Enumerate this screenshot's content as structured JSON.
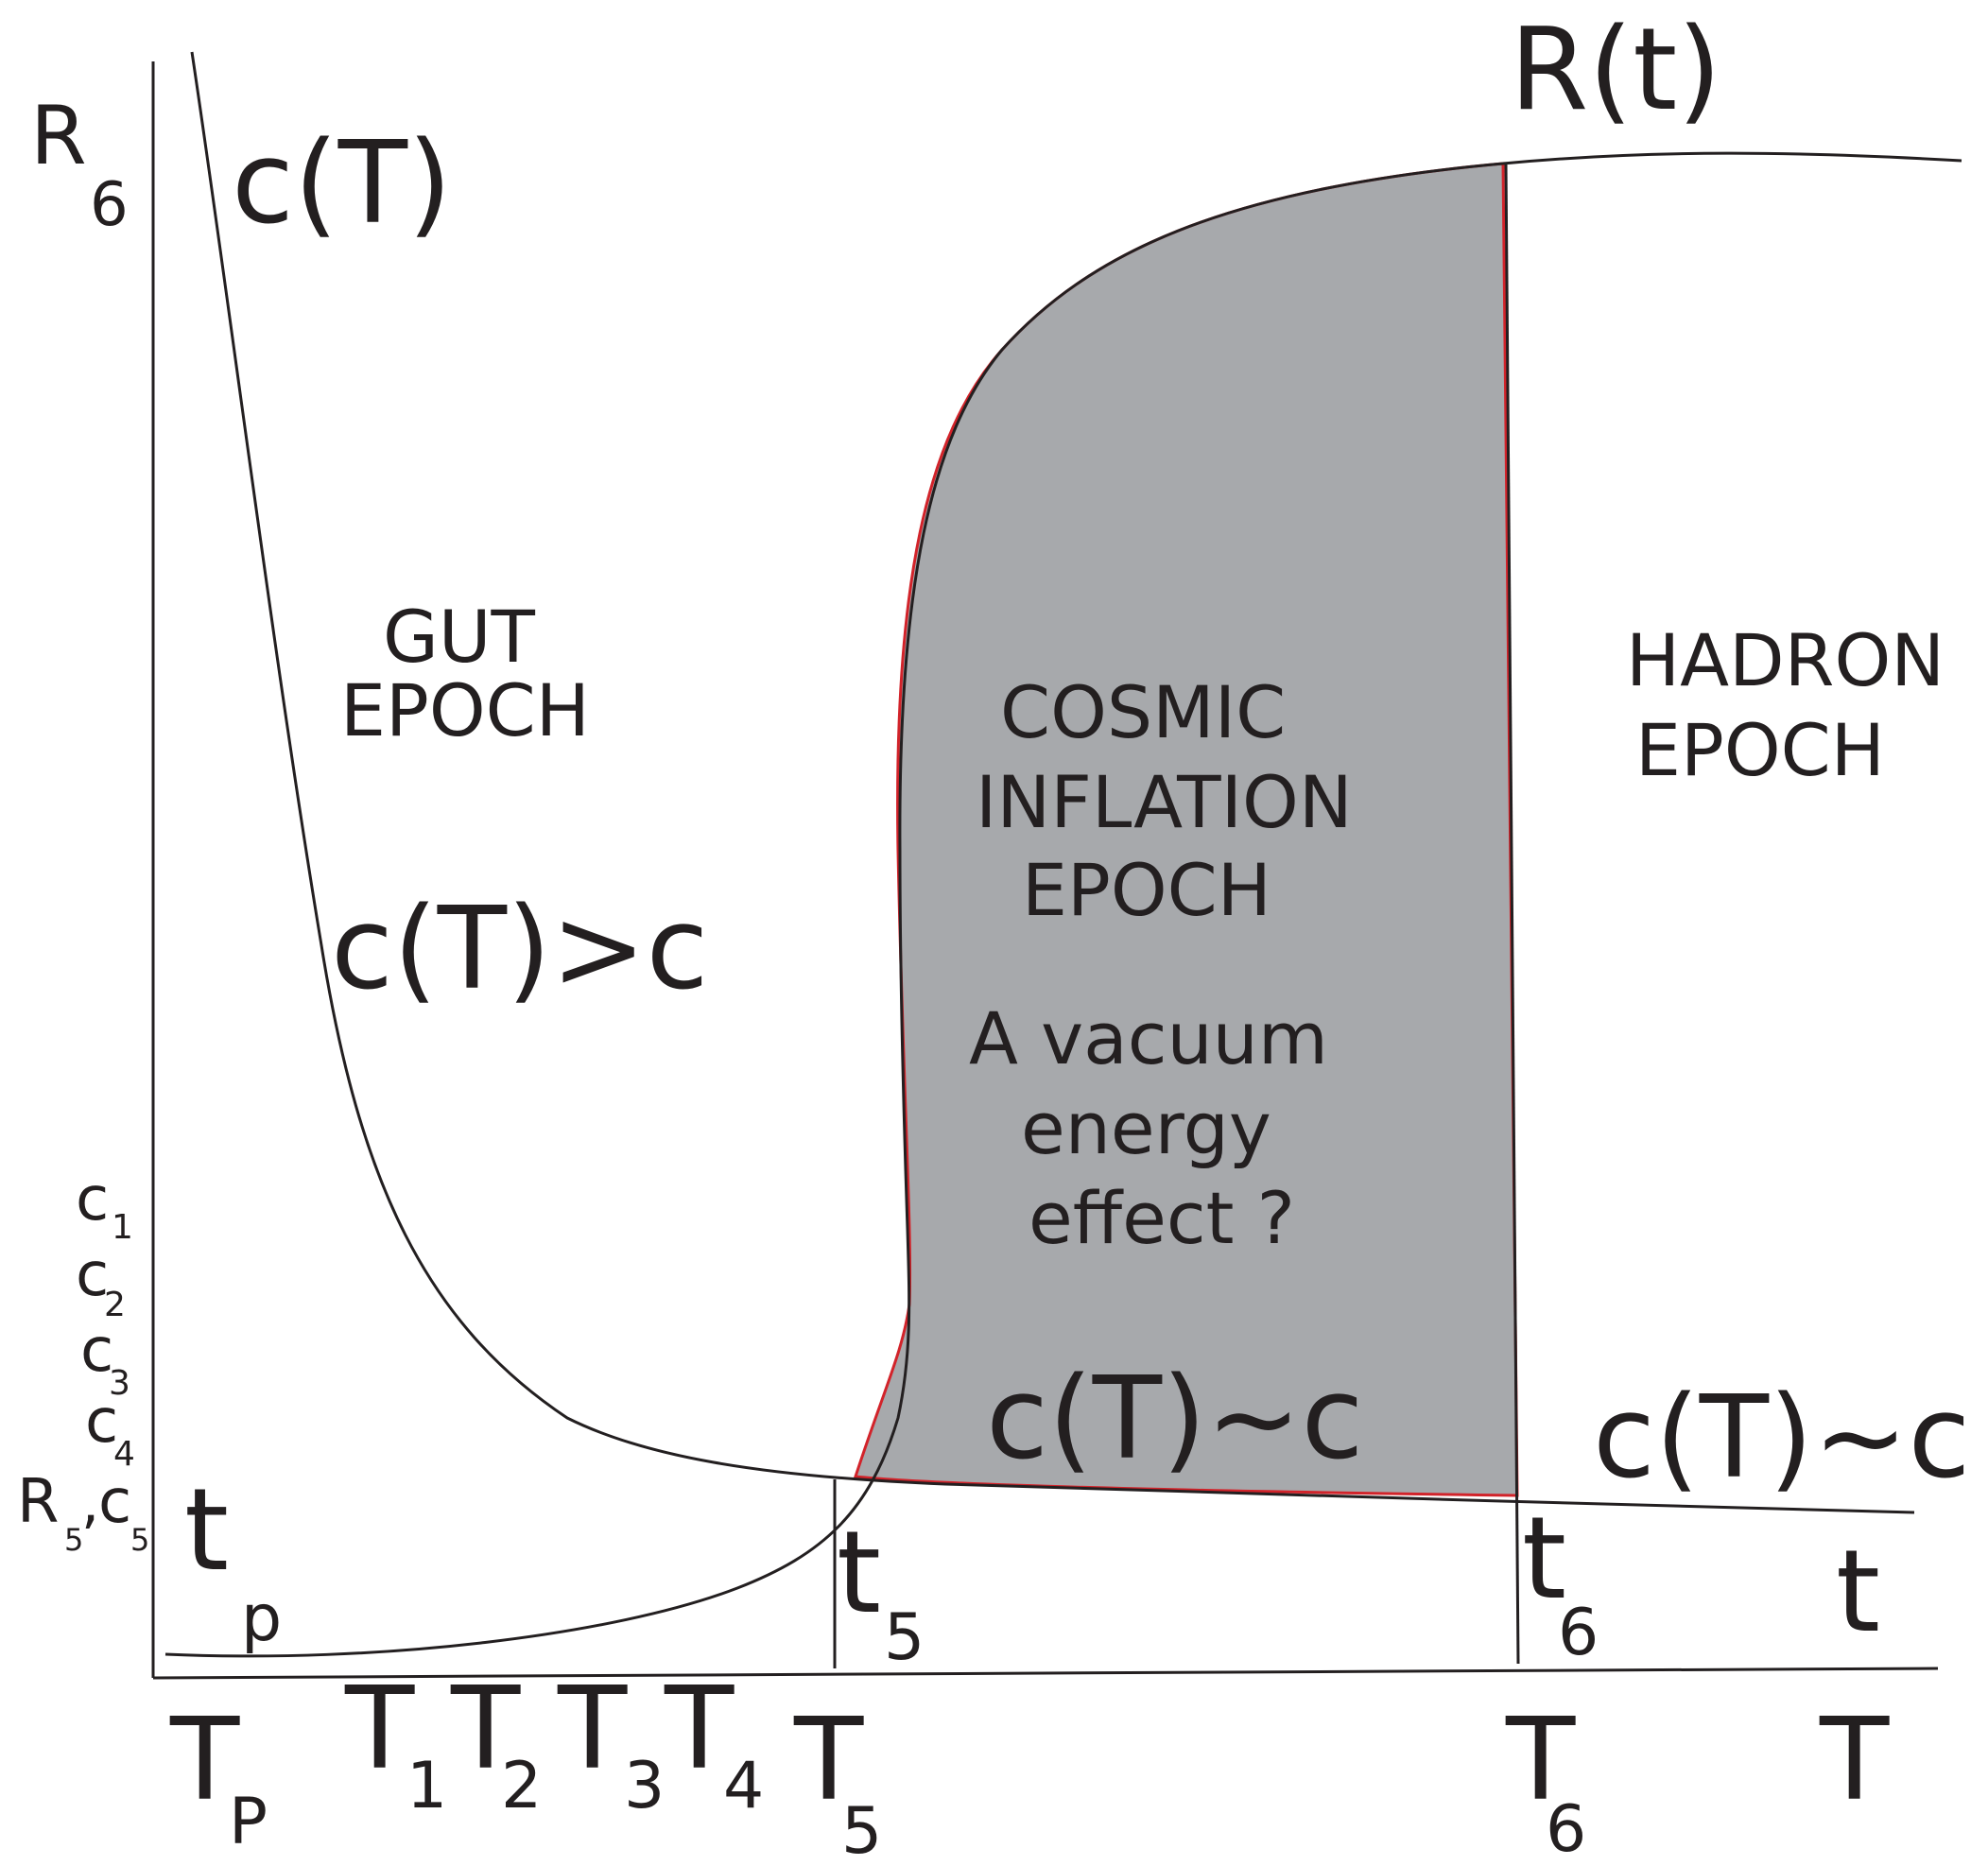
{
  "labels": {
    "r6_main": "R",
    "r6_sub": "6",
    "c_of_t_top": "c(T)",
    "r_of_t": "R(t)",
    "gut_line1": "GUT",
    "gut_line2": "EPOCH",
    "c_gt_c": "c(T)>c",
    "cosmic_line1": "COSMIC",
    "cosmic_line2": "INFLATION",
    "cosmic_line3": "EPOCH",
    "vacuum_line1": "A vacuum",
    "vacuum_line2": "energy",
    "vacuum_line3": "effect ?",
    "hadron_line1": "HADRON",
    "hadron_line2": "EPOCH",
    "c_approx_c_mid": "c(T)~c",
    "c_approx_c_right": "c(T)~c",
    "c1_main": "c",
    "c1_sub": "1",
    "c2_main": "c",
    "c2_sub": "2",
    "c3_main": "c",
    "c3_sub": "3",
    "c4_main": "c",
    "c4_sub": "4",
    "r5c5_r": "R",
    "r5c5_r_sub": "5",
    "r5c5_comma": ",",
    "r5c5_c": "c",
    "r5c5_c_sub": "5",
    "tp_main": "t",
    "tp_sub": "p",
    "t5_main": "t",
    "t5_sub": "5",
    "t6_main": "t",
    "t6_sub": "6",
    "t_axis": "t",
    "TP_main": "T",
    "TP_sub": "P",
    "T1_main": "T",
    "T1_sub": "1",
    "T2_main": "T",
    "T2_sub": "2",
    "T3_main": "T",
    "T3_sub": "3",
    "T4_main": "T",
    "T4_sub": "4",
    "T5_main": "T",
    "T5_sub": "5",
    "T6_main": "T",
    "T6_sub": "6",
    "T_axis": "T"
  },
  "colors": {
    "ink": "#231f20",
    "inflation_fill": "#a7a9ac",
    "inflation_edge": "#d2232a"
  }
}
